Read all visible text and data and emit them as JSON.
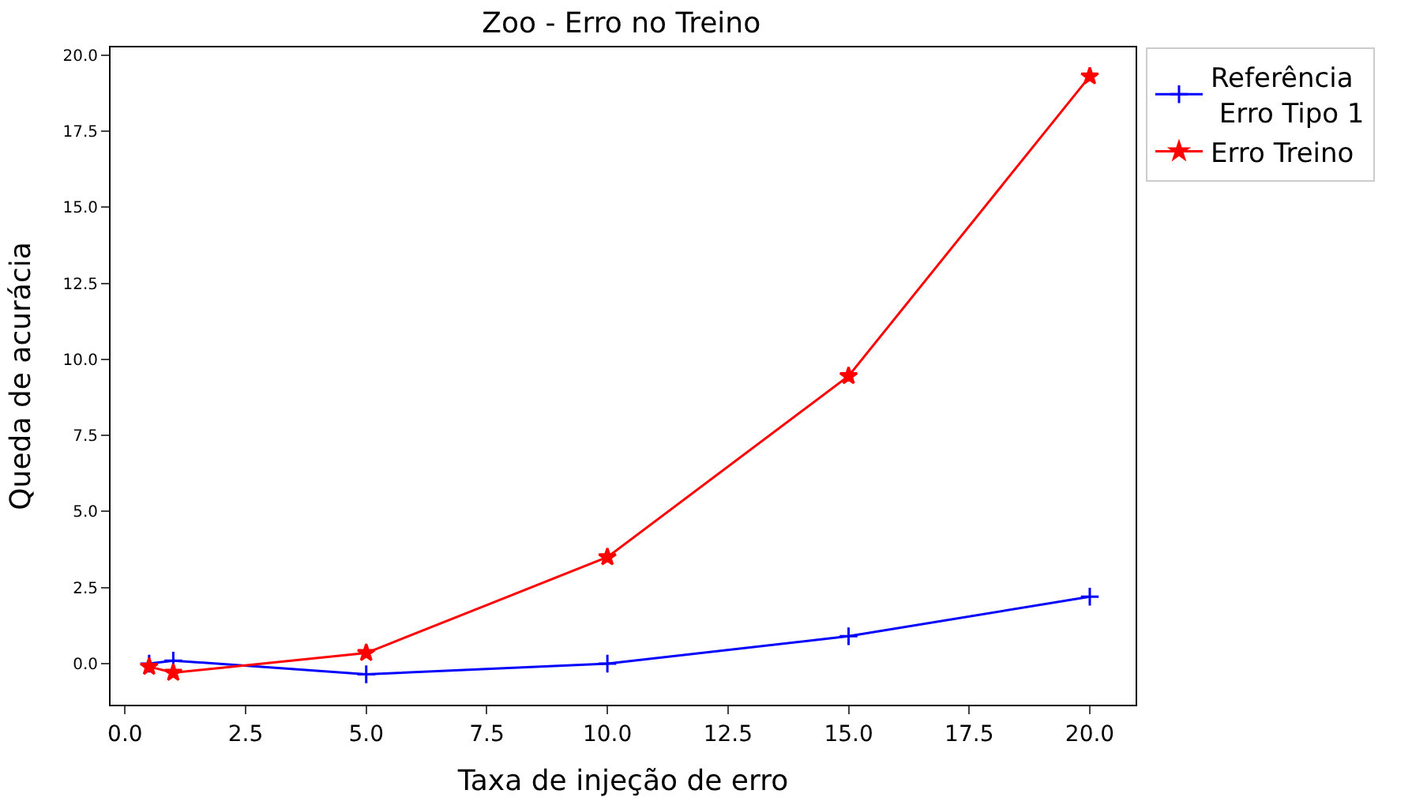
{
  "chart_data": {
    "type": "line",
    "title": "Zoo - Erro no Treino",
    "xlabel": "Taxa de injeção de erro",
    "ylabel": "Queda de acurácia",
    "xlim": [
      -0.3,
      20.95
    ],
    "xticks": [
      {
        "value": 0,
        "label": "0.0"
      },
      {
        "value": 2.5,
        "label": "2.5"
      },
      {
        "value": 5,
        "label": "5.0"
      },
      {
        "value": 7.5,
        "label": "7.5"
      },
      {
        "value": 10,
        "label": "10.0"
      },
      {
        "value": 12.5,
        "label": "12.5"
      },
      {
        "value": 15,
        "label": "15.0"
      },
      {
        "value": 17.5,
        "label": "17.5"
      },
      {
        "value": 20,
        "label": "20.0"
      }
    ],
    "ylim": [
      -1.35,
      20.25
    ],
    "yticks": [
      {
        "value": 0,
        "label": "0.0"
      },
      {
        "value": 2.5,
        "label": "2.5"
      },
      {
        "value": 5,
        "label": "5.0"
      },
      {
        "value": 7.5,
        "label": "7.5"
      },
      {
        "value": 10,
        "label": "10.0"
      },
      {
        "value": 12.5,
        "label": "12.5"
      },
      {
        "value": 15,
        "label": "15.0"
      },
      {
        "value": 17.5,
        "label": "17.5"
      },
      {
        "value": 20,
        "label": "20.0"
      }
    ],
    "x": [
      0.5,
      1,
      5,
      10,
      15,
      20
    ],
    "legend": "top right",
    "series": [
      {
        "name": "Referência\n Erro Tipo 1",
        "color": "#0000ff",
        "marker": "cross",
        "values": [
          0,
          0.1,
          -0.35,
          0,
          0.9,
          2.2
        ]
      },
      {
        "name": "Erro Treino",
        "color": "#ff0000",
        "marker": "star",
        "values": [
          -0.1,
          -0.3,
          0.35,
          3.5,
          9.45,
          19.3
        ]
      }
    ]
  }
}
